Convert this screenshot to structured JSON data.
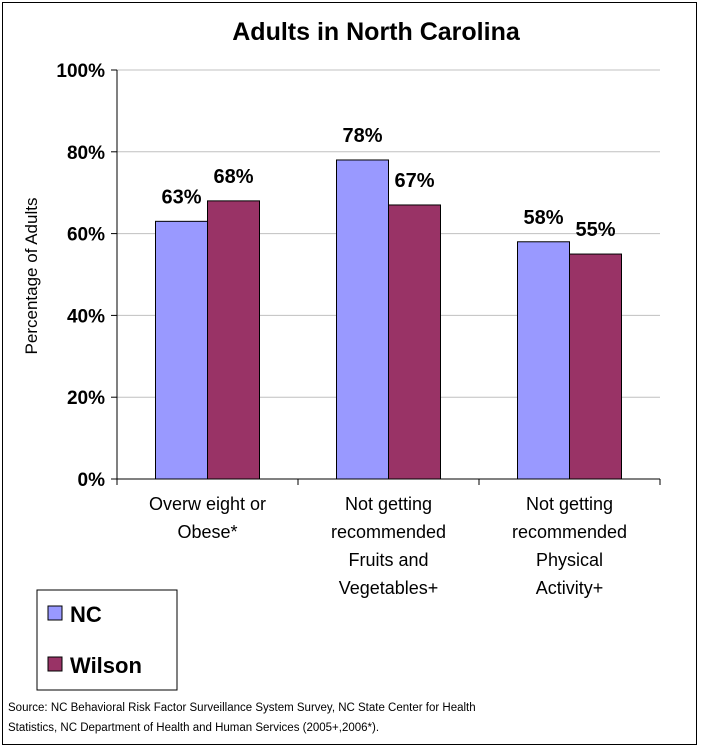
{
  "chart_data": {
    "type": "bar",
    "title": "Adults in North Carolina",
    "ylabel": "Percentage of Adults",
    "xlabel": "",
    "ylim": [
      0,
      100
    ],
    "yticks": [
      "0%",
      "20%",
      "40%",
      "60%",
      "80%",
      "100%"
    ],
    "grid": true,
    "categories": [
      [
        "Overw eight or",
        "Obese*"
      ],
      [
        "Not getting",
        "recommended",
        "Fruits and",
        "Vegetables+"
      ],
      [
        "Not getting",
        "recommended",
        "Physical",
        "Activity+"
      ]
    ],
    "series": [
      {
        "name": "NC",
        "color": "#9999ff",
        "values": [
          63,
          78,
          58
        ],
        "labels": [
          "63%",
          "78%",
          "58%"
        ]
      },
      {
        "name": "Wilson",
        "color": "#993366",
        "values": [
          68,
          67,
          55
        ],
        "labels": [
          "68%",
          "67%",
          "55%"
        ]
      }
    ],
    "legend_placement": "bottom-left"
  },
  "source": {
    "line1": "Source: NC Behavioral Risk Factor Surveillance System Survey, NC State Center for Health",
    "line2": "Statistics, NC Department of Health and Human Services (2005+,2006*)."
  }
}
